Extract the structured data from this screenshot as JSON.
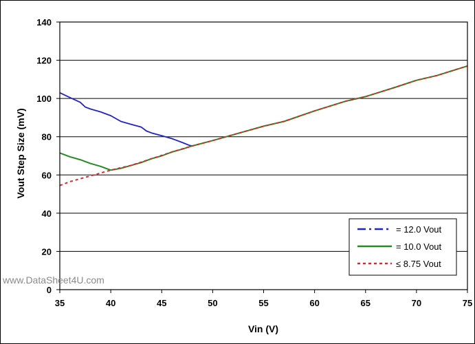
{
  "chart_data": {
    "type": "line",
    "title": "",
    "xlabel": "Vin (V)",
    "ylabel": "Vout Step Size (mV)",
    "xlim": [
      35,
      75
    ],
    "ylim": [
      0,
      140
    ],
    "x_ticks": [
      35,
      40,
      45,
      50,
      55,
      60,
      65,
      70,
      75
    ],
    "y_ticks": [
      0,
      20,
      40,
      60,
      80,
      100,
      120,
      140
    ],
    "grid": "horizontal",
    "legend_position": "bottom-right",
    "series": [
      {
        "name": "= 12.0 Vout",
        "color": "#1f22c9",
        "style": "dash-dot",
        "points": [
          [
            35,
            103
          ],
          [
            36,
            100.5
          ],
          [
            37,
            98
          ],
          [
            37.5,
            95.5
          ],
          [
            38,
            94.5
          ],
          [
            39,
            93
          ],
          [
            40,
            91
          ],
          [
            41,
            88
          ],
          [
            42,
            86.5
          ],
          [
            43,
            85
          ],
          [
            43.5,
            83
          ],
          [
            44,
            82
          ],
          [
            45,
            80.5
          ],
          [
            46,
            79
          ],
          [
            47,
            77
          ],
          [
            47.7,
            75.5
          ],
          [
            48,
            75.2
          ]
        ]
      },
      {
        "name": "= 10.0 Vout",
        "color": "#228b22",
        "style": "solid",
        "points": [
          [
            35,
            71.5
          ],
          [
            36,
            69.5
          ],
          [
            37,
            68
          ],
          [
            38,
            66
          ],
          [
            39,
            64.5
          ],
          [
            40,
            62.5
          ],
          [
            41,
            63.5
          ],
          [
            42,
            65
          ],
          [
            43,
            66.5
          ],
          [
            44,
            68.5
          ],
          [
            45,
            70
          ],
          [
            46,
            72
          ],
          [
            47,
            73.5
          ],
          [
            48,
            75.2
          ]
        ]
      },
      {
        "name": "≤ 8.75 Vout",
        "color": "#e0242a",
        "style": "dotted",
        "points": [
          [
            35,
            54.5
          ],
          [
            36,
            56.5
          ],
          [
            37,
            58
          ],
          [
            38,
            59.5
          ],
          [
            39,
            61
          ],
          [
            40,
            62.5
          ],
          [
            42,
            65
          ],
          [
            44,
            68.5
          ],
          [
            46,
            72
          ],
          [
            48,
            75.2
          ],
          [
            50,
            78
          ],
          [
            52,
            81
          ],
          [
            55,
            85.5
          ],
          [
            57,
            88
          ],
          [
            60,
            93.5
          ],
          [
            63,
            98.5
          ],
          [
            65,
            101
          ],
          [
            68,
            106
          ],
          [
            70,
            109.5
          ],
          [
            72,
            112
          ],
          [
            75,
            117
          ]
        ]
      },
      {
        "name": "",
        "color": "#228b22",
        "style": "solid",
        "points": [
          [
            48,
            75.2
          ],
          [
            50,
            78
          ],
          [
            52,
            81
          ],
          [
            55,
            85.5
          ],
          [
            57,
            88
          ],
          [
            60,
            93.5
          ],
          [
            63,
            98.5
          ],
          [
            65,
            101
          ],
          [
            68,
            106
          ],
          [
            70,
            109.5
          ],
          [
            72,
            112
          ],
          [
            75,
            117
          ]
        ]
      }
    ]
  },
  "watermark": "www.DataSheet4U.com"
}
